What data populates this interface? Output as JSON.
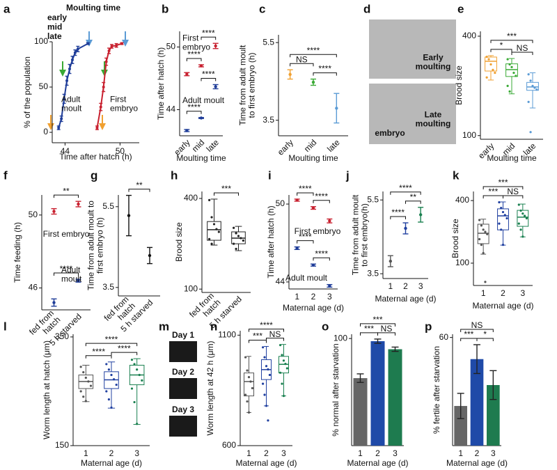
{
  "chart_data": [
    {
      "panel": "a",
      "type": "line",
      "xlabel": "Time after hatch (h)",
      "ylabel": "% of the population",
      "xlim": [
        42.6,
        52.1
      ],
      "xticks": [
        44,
        50
      ],
      "ylim": [
        -11.5,
        100
      ],
      "yticks": [
        0,
        50,
        100
      ],
      "legend_title": "Moulting time",
      "legend": [
        {
          "name": "early",
          "color": "#f0a030"
        },
        {
          "name": "mid",
          "color": "#3aaa35"
        },
        {
          "name": "late",
          "color": "#5b9bd5"
        }
      ],
      "series": [
        {
          "name": "Adult\nmoult",
          "color": "#1f3d99",
          "x": [
            43.3,
            43.6,
            43.9,
            44.2,
            44.5,
            44.8,
            45.1,
            45.4,
            46.5
          ],
          "values": [
            5,
            15,
            37,
            57,
            70,
            80,
            88,
            92,
            98
          ],
          "errors": [
            2,
            3,
            5,
            5,
            5,
            4,
            3,
            3,
            1
          ]
        },
        {
          "name": "First\nembryo",
          "color": "#c8202f",
          "x": [
            47.5,
            47.9,
            48.2,
            48.5,
            48.8,
            49.1,
            49.6,
            50.2
          ],
          "values": [
            5,
            28,
            50,
            78,
            90,
            95,
            96,
            98
          ],
          "errors": [
            2,
            4,
            5,
            4,
            3,
            2,
            2,
            1
          ]
        }
      ]
    },
    {
      "panel": "b",
      "type": "errorbar",
      "xlabel": "Moulting time",
      "ylabel": "Time after hatch (h)",
      "categories": [
        "early",
        "mid",
        "late"
      ],
      "ylim": [
        41.5,
        51.5
      ],
      "yticks": [
        44,
        50
      ],
      "series": [
        {
          "name": "First\nembryo",
          "color": "#c8202f",
          "values": [
            47.4,
            48.2,
            50.1
          ],
          "errors": [
            0.15,
            0.1,
            0.25
          ]
        },
        {
          "name": "Adult moult",
          "color": "#1f3d99",
          "values": [
            42.0,
            43.2,
            46.2
          ],
          "errors": [
            0.1,
            0.05,
            0.2
          ]
        }
      ],
      "significance": [
        {
          "series": 0,
          "from": 0,
          "to": 1,
          "label": "****"
        },
        {
          "series": 0,
          "from": 1,
          "to": 2,
          "label": "****"
        },
        {
          "series": 1,
          "from": 0,
          "to": 1,
          "label": "****"
        },
        {
          "series": 1,
          "from": 1,
          "to": 2,
          "label": "****"
        }
      ]
    },
    {
      "panel": "c",
      "type": "errorbar",
      "xlabel": "Moulting time",
      "ylabel": "Time from adult moult\nto first embryo (h)",
      "categories": [
        "early",
        "mid",
        "late"
      ],
      "ylim": [
        3.1,
        5.7
      ],
      "yticks": [
        3.5,
        5.5
      ],
      "values": [
        4.68,
        4.48,
        3.81
      ],
      "errors": [
        0.12,
        0.08,
        0.38
      ],
      "colors": [
        "#f0a030",
        "#3aaa35",
        "#5b9bd5"
      ],
      "significance": [
        {
          "from": 0,
          "to": 1,
          "label": "NS"
        },
        {
          "from": 1,
          "to": 2,
          "label": "****"
        },
        {
          "from": 0,
          "to": 2,
          "label": "****"
        }
      ]
    },
    {
      "panel": "d",
      "type": "image",
      "labels": [
        "Early\nmoulting",
        "Late\nmoulting",
        "embryo"
      ]
    },
    {
      "panel": "e",
      "type": "box",
      "xlabel": "Moulting time",
      "ylabel": "Brood size",
      "log": true,
      "categories": [
        "early",
        "mid",
        "late"
      ],
      "ylim": [
        95,
        428
      ],
      "yticks": [
        100,
        400
      ],
      "colors": [
        "#f0a030",
        "#3aaa35",
        "#5b9bd5"
      ],
      "boxes": [
        {
          "min": 217,
          "q1": 246,
          "median": 282,
          "q3": 299,
          "max": 305,
          "points": [
            300,
            290,
            270,
            250,
            240,
            225
          ]
        },
        {
          "min": 179,
          "q1": 228,
          "median": 251,
          "q3": 272,
          "max": 293,
          "points": [
            290,
            270,
            260,
            240,
            230,
            200,
            185
          ]
        },
        {
          "min": 147,
          "q1": 188,
          "median": 197,
          "q3": 210,
          "max": 240,
          "points": [
            235,
            215,
            200,
            195,
            190,
            160,
            105
          ]
        }
      ],
      "significance": [
        {
          "from": 0,
          "to": 1,
          "label": "*"
        },
        {
          "from": 1,
          "to": 2,
          "label": "NS"
        },
        {
          "from": 0,
          "to": 2,
          "label": "***"
        }
      ]
    },
    {
      "panel": "f",
      "type": "errorbar",
      "ylabel": "Time feeding (h)",
      "categories": [
        "fed from\nhatch",
        "5 h starved"
      ],
      "ylim": [
        44.8,
        51.1
      ],
      "yticks": [
        46,
        50
      ],
      "series": [
        {
          "name": "First embryo",
          "color": "#c8202f",
          "values": [
            50.2,
            50.6
          ],
          "errors": [
            0.15,
            0.15
          ]
        },
        {
          "name": "Adult\nmoult",
          "color": "#1f3d99",
          "values": [
            45.2,
            46.4
          ],
          "errors": [
            0.2,
            0.08
          ]
        }
      ],
      "significance": [
        {
          "series": 0,
          "from": 0,
          "to": 1,
          "label": "**"
        },
        {
          "series": 1,
          "from": 0,
          "to": 1,
          "label": "****"
        }
      ]
    },
    {
      "panel": "g",
      "type": "errorbar",
      "ylabel": "Time from adult moult to\nfirst embryo (h)",
      "categories": [
        "fed from\nhatch",
        "5 h starved"
      ],
      "ylim": [
        3.29,
        5.79
      ],
      "yticks": [
        3.5,
        5.5
      ],
      "values": [
        5.28,
        4.29
      ],
      "errors": [
        0.5,
        0.2
      ],
      "colors": [
        "#111111",
        "#111111"
      ],
      "significance": [
        {
          "from": 0,
          "to": 1,
          "label": "**"
        }
      ]
    },
    {
      "panel": "h",
      "type": "box",
      "ylabel": "Brood size",
      "log": true,
      "categories": [
        "fed from\nhatch",
        "5 h starved"
      ],
      "ylim": [
        95,
        445
      ],
      "yticks": [
        100,
        400
      ],
      "colors": [
        "#222222",
        "#222222"
      ],
      "boxes": [
        {
          "min": 196,
          "q1": 211,
          "median": 248,
          "q3": 281,
          "max": 396,
          "points": [
            390,
            300,
            270,
            250,
            240,
            215,
            200
          ]
        },
        {
          "min": 180,
          "q1": 200,
          "median": 218,
          "q3": 240,
          "max": 261,
          "points": [
            255,
            235,
            225,
            218,
            210,
            200,
            185
          ]
        }
      ],
      "significance": [
        {
          "from": 0,
          "to": 1,
          "label": "***"
        }
      ]
    },
    {
      "panel": "i",
      "type": "errorbar",
      "xlabel": "Maternal age (d)",
      "ylabel": "Time after hatch (h)",
      "categories": [
        "1",
        "2",
        "3"
      ],
      "ylim": [
        43.46,
        50.7
      ],
      "yticks": [
        44,
        50
      ],
      "series": [
        {
          "name": "First embryo",
          "color": "#c8202f",
          "values": [
            50.3,
            49.7,
            48.7
          ],
          "errors": [
            0.08,
            0.1,
            0.15
          ]
        },
        {
          "name": "Adult moult",
          "color": "#1f3d99",
          "values": [
            46.6,
            45.3,
            43.7
          ],
          "errors": [
            0.1,
            0.08,
            0.1
          ]
        }
      ],
      "significance": [
        {
          "series": 0,
          "from": 0,
          "to": 1,
          "label": "****"
        },
        {
          "series": 0,
          "from": 1,
          "to": 2,
          "label": "****"
        },
        {
          "series": 1,
          "from": 0,
          "to": 1,
          "label": "****"
        },
        {
          "series": 1,
          "from": 1,
          "to": 2,
          "label": "****"
        }
      ]
    },
    {
      "panel": "j",
      "type": "errorbar",
      "xlabel": "Maternal age (d)",
      "ylabel": "Time from adult moult\nto first embryo(h)",
      "categories": [
        "1",
        "2",
        "3"
      ],
      "ylim": [
        3.37,
        5.73
      ],
      "yticks": [
        3.5,
        5.5
      ],
      "values": [
        3.84,
        4.73,
        5.1
      ],
      "errors": [
        0.15,
        0.15,
        0.2
      ],
      "colors": [
        "#555555",
        "#2040a0",
        "#1a8050"
      ],
      "significance": [
        {
          "from": 0,
          "to": 1,
          "label": "****"
        },
        {
          "from": 1,
          "to": 2,
          "label": "**"
        },
        {
          "from": 0,
          "to": 2,
          "label": "****"
        }
      ]
    },
    {
      "panel": "k",
      "type": "box",
      "xlabel": "Maternal age (d)",
      "ylabel": "Brood size",
      "log": true,
      "categories": [
        "1",
        "2",
        "3"
      ],
      "ylim": [
        61,
        489
      ],
      "yticks": [
        100,
        400
      ],
      "colors": [
        "#555555",
        "#2040a0",
        "#1a8050"
      ],
      "boxes": [
        {
          "min": 122,
          "q1": 154,
          "median": 194,
          "q3": 237,
          "max": 265,
          "points": [
            260,
            230,
            210,
            200,
            190,
            170,
            150,
            125,
            66
          ]
        },
        {
          "min": 149,
          "q1": 209,
          "median": 285,
          "q3": 333,
          "max": 388,
          "points": [
            385,
            340,
            310,
            290,
            270,
            240,
            210,
            150
          ]
        },
        {
          "min": 179,
          "q1": 226,
          "median": 277,
          "q3": 322,
          "max": 370,
          "points": [
            365,
            320,
            300,
            285,
            270,
            240,
            210,
            180
          ]
        }
      ],
      "significance": [
        {
          "from": 0,
          "to": 1,
          "label": "***"
        },
        {
          "from": 1,
          "to": 2,
          "label": "NS"
        },
        {
          "from": 0,
          "to": 2,
          "label": "***"
        }
      ]
    },
    {
      "panel": "l",
      "type": "box",
      "xlabel": "Maternal age (d)",
      "ylabel": "Worm length at hatch (μm)",
      "categories": [
        "1",
        "2",
        "3"
      ],
      "ylim": [
        150,
        355
      ],
      "yticks": [
        150,
        350
      ],
      "colors": [
        "#555555",
        "#2040a0",
        "#1a8050"
      ],
      "boxes": [
        {
          "min": 231,
          "q1": 255,
          "median": 268,
          "q3": 280,
          "max": 298,
          "points": [
            295,
            285,
            275,
            268,
            260,
            250,
            240,
            232
          ]
        },
        {
          "min": 219,
          "q1": 255,
          "median": 271,
          "q3": 286,
          "max": 304,
          "points": [
            300,
            290,
            280,
            272,
            262,
            250,
            235,
            220
          ]
        },
        {
          "min": 189,
          "q1": 262,
          "median": 280,
          "q3": 298,
          "max": 310,
          "points": [
            308,
            300,
            290,
            280,
            270,
            255,
            230,
            190
          ]
        }
      ],
      "significance": [
        {
          "from": 0,
          "to": 1,
          "label": "****"
        },
        {
          "from": 1,
          "to": 2,
          "label": "****"
        },
        {
          "from": 0,
          "to": 2,
          "label": "****"
        }
      ]
    },
    {
      "panel": "m",
      "type": "image",
      "labels": [
        "Day 1",
        "Day 2",
        "Day 3"
      ]
    },
    {
      "panel": "n",
      "type": "box",
      "xlabel": "Maternal age (d)",
      "ylabel": "Worm length at 42 h (μm)",
      "categories": [
        "1",
        "2",
        "3"
      ],
      "ylim": [
        600,
        1120
      ],
      "yticks": [
        600,
        1100
      ],
      "colors": [
        "#555555",
        "#2040a0",
        "#1a8050"
      ],
      "boxes": [
        {
          "min": 750,
          "q1": 825,
          "median": 890,
          "q3": 929,
          "max": 1004,
          "points": [
            1000,
            940,
            910,
            890,
            860,
            830,
            800,
            750
          ]
        },
        {
          "min": 780,
          "q1": 899,
          "median": 944,
          "q3": 989,
          "max": 1049,
          "points": [
            1045,
            1000,
            960,
            945,
            920,
            880,
            830,
            780,
            714
          ]
        },
        {
          "min": 825,
          "q1": 929,
          "median": 968,
          "q3": 1004,
          "max": 1058,
          "points": [
            1055,
            1010,
            985,
            970,
            950,
            930,
            880,
            825
          ]
        }
      ],
      "significance": [
        {
          "from": 0,
          "to": 1,
          "label": "***"
        },
        {
          "from": 1,
          "to": 2,
          "label": "NS"
        },
        {
          "from": 0,
          "to": 2,
          "label": "****"
        }
      ]
    },
    {
      "panel": "o",
      "type": "bar",
      "xlabel": "Maternal age (d)",
      "ylabel": "% normal after starvation",
      "categories": [
        "1",
        "2",
        "3"
      ],
      "ylim": [
        0,
        104
      ],
      "yticks": [
        100
      ],
      "values": [
        63,
        97.5,
        90
      ],
      "errors": [
        4,
        2,
        2
      ],
      "colors": [
        "#666666",
        "#1f4aa8",
        "#1e7b4f"
      ],
      "significance": [
        {
          "from": 0,
          "to": 1,
          "label": "***"
        },
        {
          "from": 1,
          "to": 2,
          "label": "NS"
        },
        {
          "from": 0,
          "to": 2,
          "label": "***"
        }
      ]
    },
    {
      "panel": "p",
      "type": "bar",
      "xlabel": "Maternal age (d)",
      "ylabel": "% fertile after starvation",
      "categories": [
        "1",
        "2",
        "3"
      ],
      "ylim": [
        0,
        61.8
      ],
      "yticks": [
        60
      ],
      "values": [
        22,
        48,
        33.6
      ],
      "errors": [
        7,
        8,
        8
      ],
      "colors": [
        "#666666",
        "#1f4aa8",
        "#1e7b4f"
      ],
      "significance": [
        {
          "from": 0,
          "to": 1,
          "label": "***"
        },
        {
          "from": 1,
          "to": 2,
          "label": "*"
        },
        {
          "from": 0,
          "to": 2,
          "label": "NS"
        }
      ]
    }
  ]
}
